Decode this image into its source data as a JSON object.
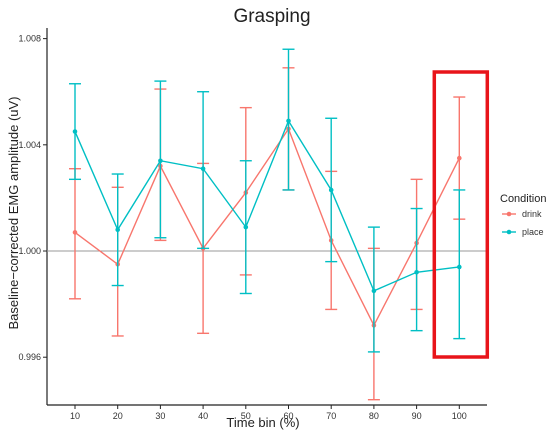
{
  "chart_data": {
    "type": "line",
    "title": "Grasping",
    "xlabel": "Time bin (%)",
    "ylabel": "Baseline−corrected EMG amplitude (uV)",
    "categories": [
      "10",
      "20",
      "30",
      "40",
      "50",
      "60",
      "70",
      "80",
      "90",
      "100"
    ],
    "ylim": [
      0.9942,
      1.0084
    ],
    "yticks": [
      0.996,
      1.0,
      1.004,
      1.008
    ],
    "ytick_labels": [
      "0.996",
      "1.000",
      "1.004",
      "1.008"
    ],
    "reference_line": 1.0,
    "legend": {
      "title": "Condition",
      "placement": "right"
    },
    "series": [
      {
        "name": "drink",
        "color": "#F8766D",
        "values": [
          1.0007,
          0.9995,
          1.0032,
          1.0001,
          1.0022,
          1.0046,
          1.0004,
          0.9972,
          1.0003,
          1.0035
        ],
        "error_low": [
          0.9982,
          0.9968,
          1.0004,
          0.9969,
          0.9991,
          1.0023,
          0.9978,
          0.9944,
          0.9978,
          1.0012
        ],
        "error_high": [
          1.0031,
          1.0024,
          1.0061,
          1.0033,
          1.0054,
          1.0069,
          1.003,
          1.0001,
          1.0027,
          1.0058
        ]
      },
      {
        "name": "place",
        "color": "#00BFC4",
        "values": [
          1.0045,
          1.0008,
          1.0034,
          1.0031,
          1.0009,
          1.0049,
          1.0023,
          0.9985,
          0.9992,
          0.9994
        ],
        "error_low": [
          1.0027,
          0.9987,
          1.0005,
          1.0001,
          0.9984,
          1.0023,
          0.9996,
          0.9962,
          0.997,
          0.9967
        ],
        "error_high": [
          1.0063,
          1.0029,
          1.0064,
          1.006,
          1.0034,
          1.0076,
          1.005,
          1.0009,
          1.0016,
          1.0023
        ]
      }
    ],
    "highlight": {
      "category": "100",
      "color": "#E8141A"
    },
    "grid": false
  }
}
